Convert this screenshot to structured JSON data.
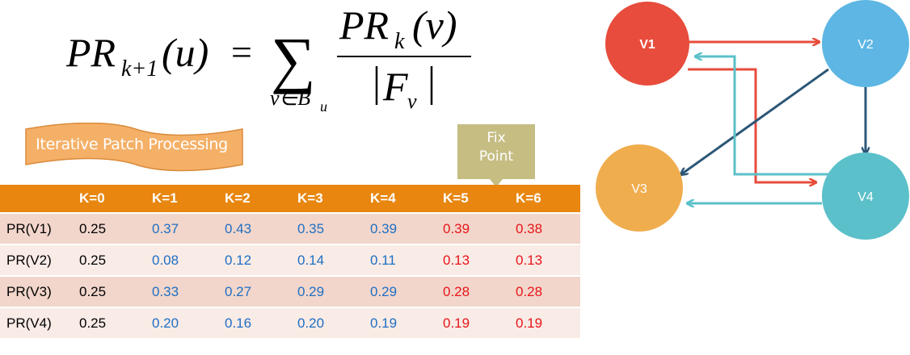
{
  "formula": {
    "lhs_base": "PR",
    "lhs_sub": "k+1",
    "lhs_arg": "(u)",
    "equals": "=",
    "sum": "∑",
    "sum_sub_var": "v∈B",
    "sum_sub_sub": "u",
    "num_base": "PR",
    "num_sub": "k",
    "num_arg": "(v)",
    "den_base": "F",
    "den_sub": "v"
  },
  "banner": {
    "label": "Iterative Patch Processing"
  },
  "fix_point": {
    "line1": "Fix",
    "line2": "Point"
  },
  "table": {
    "headers": [
      "",
      "K=0",
      "K=1",
      "K=2",
      "K=3",
      "K=4",
      "K=5",
      "K=6"
    ],
    "rows": [
      {
        "label": "PR(V1)",
        "values": [
          "0.25",
          "0.37",
          "0.43",
          "0.35",
          "0.39",
          "0.39",
          "0.38"
        ]
      },
      {
        "label": "PR(V2)",
        "values": [
          "0.25",
          "0.08",
          "0.12",
          "0.14",
          "0.11",
          "0.13",
          "0.13"
        ]
      },
      {
        "label": "PR(V3)",
        "values": [
          "0.25",
          "0.33",
          "0.27",
          "0.29",
          "0.29",
          "0.28",
          "0.28"
        ]
      },
      {
        "label": "PR(V4)",
        "values": [
          "0.25",
          "0.20",
          "0.16",
          "0.20",
          "0.19",
          "0.19",
          "0.19"
        ]
      }
    ]
  },
  "graph": {
    "nodes": [
      {
        "id": "V1",
        "label": "V1",
        "color": "#e74c3c"
      },
      {
        "id": "V2",
        "label": "V2",
        "color": "#5db6e3"
      },
      {
        "id": "V3",
        "label": "V3",
        "color": "#f0ad4e"
      },
      {
        "id": "V4",
        "label": "V4",
        "color": "#5bc0c9"
      }
    ],
    "edges": [
      {
        "from": "V1",
        "to": "V2",
        "color": "#e74c3c"
      },
      {
        "from": "V1",
        "to": "V4",
        "color": "#e74c3c"
      },
      {
        "from": "V2",
        "to": "V3",
        "color": "#2c5777"
      },
      {
        "from": "V2",
        "to": "V4",
        "color": "#2c5777"
      },
      {
        "from": "V4",
        "to": "V1",
        "color": "#5bc0c9"
      },
      {
        "from": "V4",
        "to": "V3",
        "color": "#5bc0c9"
      }
    ]
  },
  "colors": {
    "header_orange": "#e8860f",
    "banner_orange": "#f5b067",
    "callout_olive": "#c6bd83",
    "row_odd": "#f2d6cb",
    "row_even": "#f9ebe6",
    "value_black": "#000000",
    "value_blue": "#1f6fc4",
    "value_red": "#e8151a"
  }
}
